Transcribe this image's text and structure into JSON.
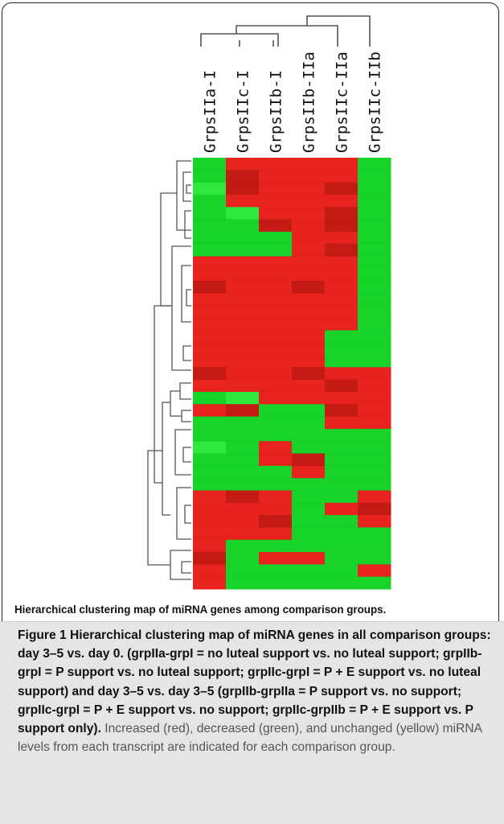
{
  "figure": {
    "columns": [
      "GrpsIIa-I",
      "GrpsIIc-I",
      "GrpsIIb-I",
      "GrpsIIb-IIa",
      "GrpsIIc-IIa",
      "GrpsIIc-IIb"
    ],
    "inner_caption": "Hierarchical clustering map of miRNA genes  among comparison  groups.",
    "colors": {
      "up": "#e8231f",
      "up_dark": "#c41a14",
      "down": "#18d42a",
      "down_light": "#2fe83c",
      "down_dark": "#12b51e",
      "dendrogram": "#555555"
    },
    "heatmap_rows": [
      [
        "G",
        "R",
        "R",
        "R",
        "R",
        "G"
      ],
      [
        "G",
        "r",
        "R",
        "R",
        "R",
        "G"
      ],
      [
        "g",
        "r",
        "R",
        "R",
        "r",
        "G"
      ],
      [
        "G",
        "R",
        "R",
        "R",
        "R",
        "G"
      ],
      [
        "G",
        "g",
        "R",
        "R",
        "r",
        "G"
      ],
      [
        "G",
        "G",
        "r",
        "R",
        "r",
        "G"
      ],
      [
        "G",
        "G",
        "G",
        "R",
        "R",
        "G"
      ],
      [
        "G",
        "G",
        "G",
        "R",
        "r",
        "G"
      ],
      [
        "R",
        "R",
        "R",
        "R",
        "R",
        "G"
      ],
      [
        "R",
        "R",
        "R",
        "R",
        "R",
        "G"
      ],
      [
        "r",
        "R",
        "R",
        "r",
        "R",
        "G"
      ],
      [
        "R",
        "R",
        "R",
        "R",
        "R",
        "G"
      ],
      [
        "R",
        "R",
        "R",
        "R",
        "R",
        "G"
      ],
      [
        "R",
        "R",
        "R",
        "R",
        "R",
        "G"
      ],
      [
        "R",
        "R",
        "R",
        "R",
        "G",
        "G"
      ],
      [
        "R",
        "R",
        "R",
        "R",
        "G",
        "G"
      ],
      [
        "R",
        "R",
        "R",
        "R",
        "G",
        "G"
      ],
      [
        "r",
        "R",
        "R",
        "r",
        "R",
        "R"
      ],
      [
        "R",
        "R",
        "R",
        "R",
        "r",
        "R"
      ],
      [
        "G",
        "g",
        "R",
        "R",
        "R",
        "R"
      ],
      [
        "R",
        "r",
        "G",
        "G",
        "r",
        "R"
      ],
      [
        "G",
        "G",
        "G",
        "G",
        "R",
        "R"
      ],
      [
        "G",
        "G",
        "G",
        "G",
        "G",
        "G"
      ],
      [
        "g",
        "G",
        "R",
        "G",
        "G",
        "G"
      ],
      [
        "G",
        "G",
        "R",
        "r",
        "G",
        "G"
      ],
      [
        "G",
        "G",
        "G",
        "R",
        "G",
        "G"
      ],
      [
        "G",
        "G",
        "G",
        "G",
        "G",
        "G"
      ],
      [
        "R",
        "r",
        "R",
        "G",
        "G",
        "R"
      ],
      [
        "R",
        "R",
        "R",
        "G",
        "R",
        "r"
      ],
      [
        "R",
        "R",
        "r",
        "G",
        "G",
        "R"
      ],
      [
        "R",
        "R",
        "R",
        "G",
        "G",
        "G"
      ],
      [
        "R",
        "G",
        "G",
        "G",
        "G",
        "G"
      ],
      [
        "r",
        "G",
        "R",
        "R",
        "G",
        "G"
      ],
      [
        "R",
        "G",
        "G",
        "G",
        "G",
        "R"
      ],
      [
        "R",
        "G",
        "G",
        "G",
        "G",
        "G"
      ]
    ]
  },
  "caption": {
    "label": "Figure 1",
    "bold_text": " Hierarchical clustering map of miRNA genes in all comparison groups: day 3–5 vs. day 0. (grpIIa-grpI = no luteal support vs. no luteal support; grpIIb-grpI = P support vs. no luteal support; grpIIc-grpI = P + E support vs. no luteal support) and day 3–5 vs. day 3–5 (grpIIb-grpIIa = P support vs. no support; grpIIc-grpI = P + E support vs. no support; grpIIc-grpIIb = P + E support vs. P support only).",
    "plain_text": " Increased (red), decreased (green), and unchanged (yellow) miRNA levels from each transcript are indicated for each comparison group."
  }
}
